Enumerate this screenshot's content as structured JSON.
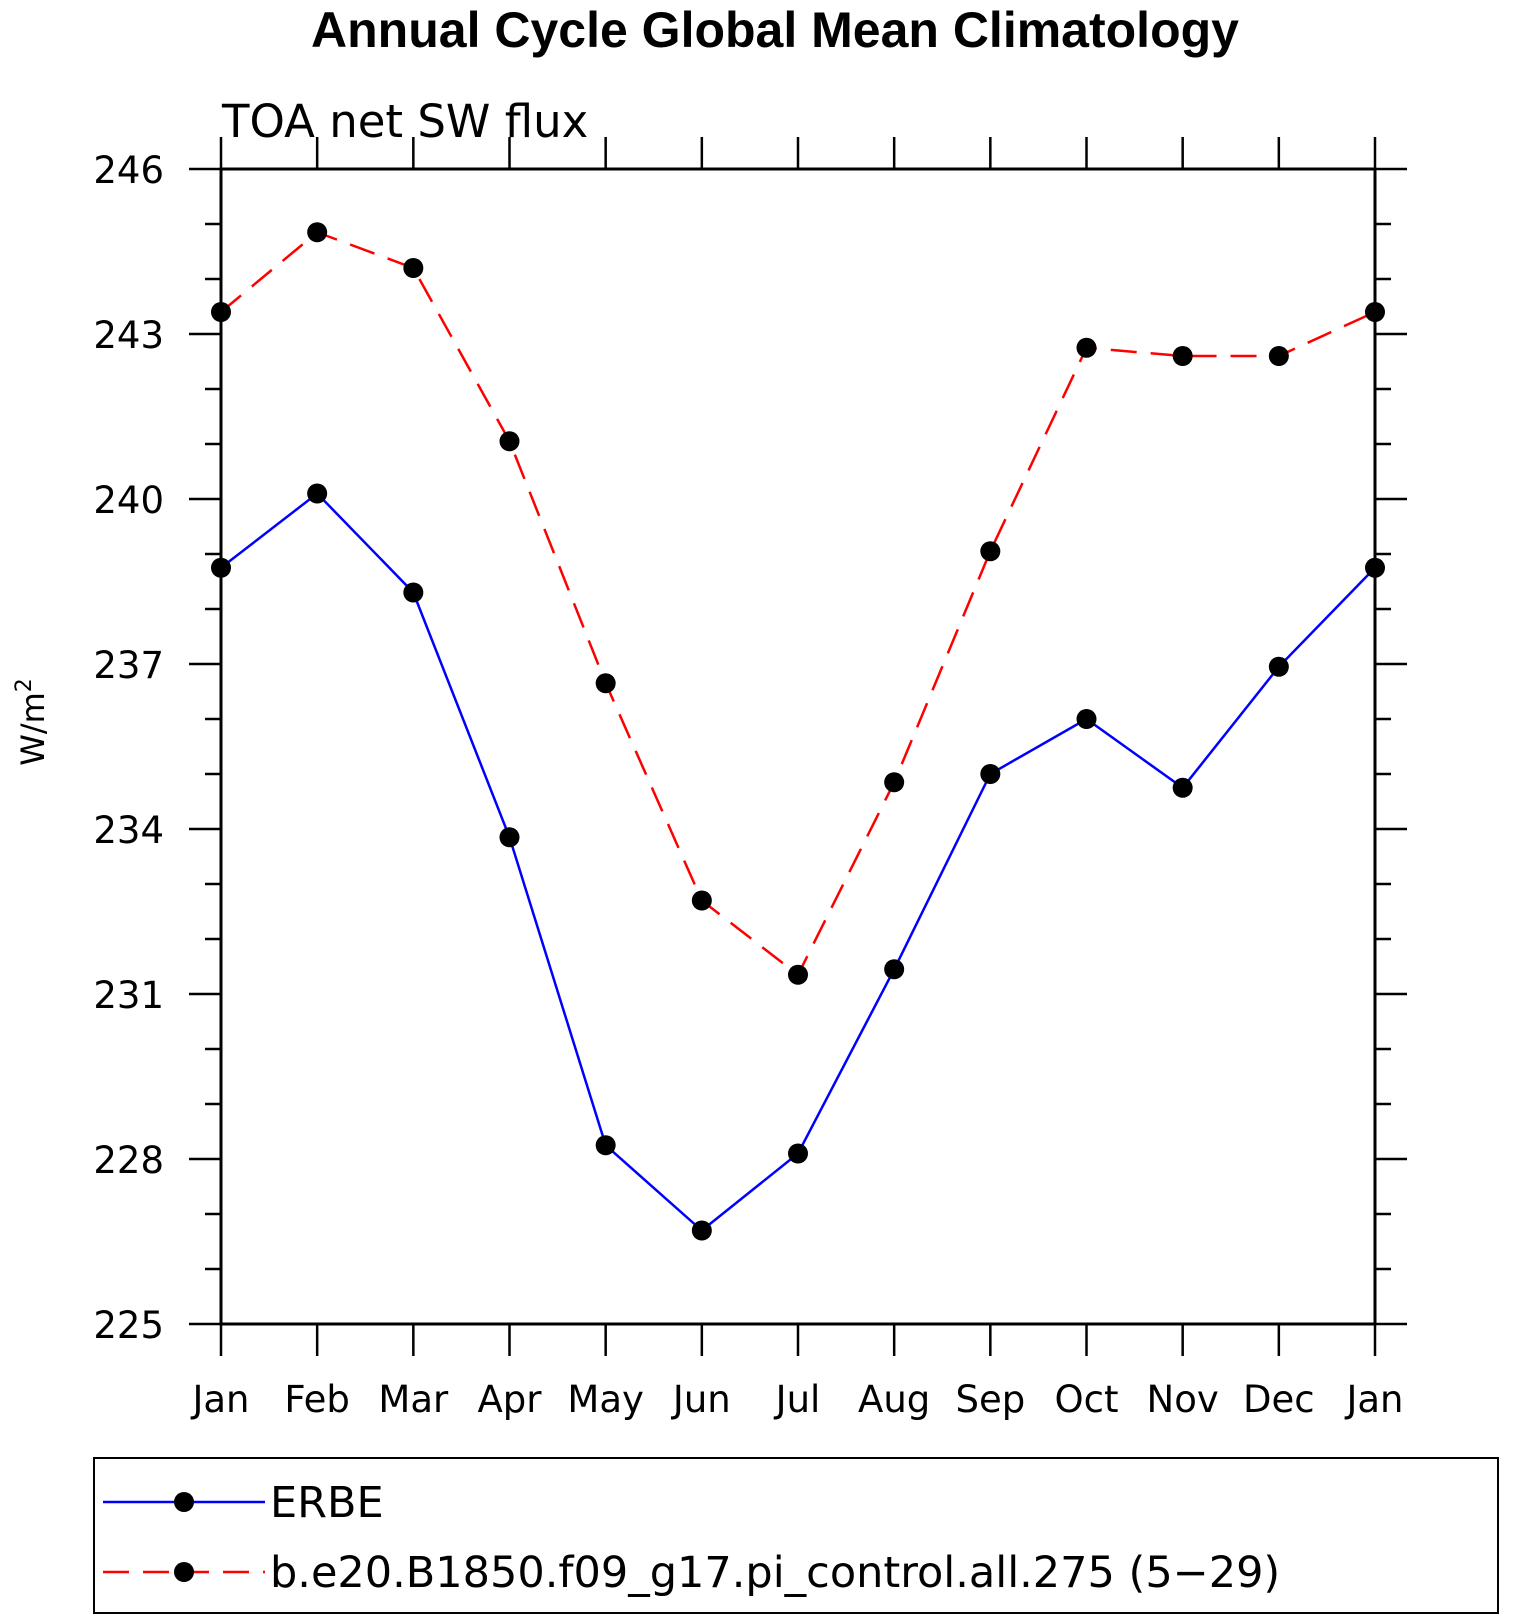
{
  "chart_data": {
    "type": "line",
    "title": "Annual Cycle Global Mean Climatology",
    "subtitle": "TOA net SW flux",
    "ylabel": "W/m",
    "ylabel_sup": "2",
    "categories": [
      "Jan",
      "Feb",
      "Mar",
      "Apr",
      "May",
      "Jun",
      "Jul",
      "Aug",
      "Sep",
      "Oct",
      "Nov",
      "Dec",
      "Jan"
    ],
    "ylim": [
      225,
      246
    ],
    "yticks": [
      225,
      228,
      231,
      234,
      237,
      240,
      243,
      246
    ],
    "grid": false,
    "legend_position": "bottom",
    "series": [
      {
        "name": "ERBE",
        "color": "#0000ff",
        "dash": "solid",
        "marker": "circle",
        "values": [
          238.75,
          240.1,
          238.3,
          233.85,
          228.25,
          226.7,
          228.1,
          231.45,
          235.0,
          236.0,
          234.75,
          236.95,
          238.75
        ]
      },
      {
        "name": "b.e20.B1850.f09_g17.pi_control.all.275 (5−29)",
        "color": "#ff0000",
        "dash": "dashed",
        "marker": "circle",
        "values": [
          243.4,
          244.85,
          244.2,
          241.05,
          236.65,
          232.7,
          231.35,
          234.85,
          239.05,
          242.75,
          242.6,
          242.6,
          243.4
        ]
      }
    ]
  }
}
